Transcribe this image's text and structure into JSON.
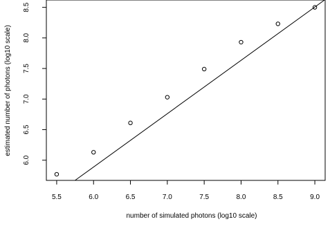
{
  "chart_data": {
    "type": "scatter",
    "title": "",
    "xlabel": "number of simulated photons (log10 scale)",
    "ylabel": "estimated number of photons (log10 scale)",
    "xlim": [
      5.36,
      9.14
    ],
    "ylim": [
      5.67,
      8.62
    ],
    "x_ticks": [
      "5.5",
      "6.0",
      "6.5",
      "7.0",
      "7.5",
      "8.0",
      "8.5",
      "9.0"
    ],
    "y_ticks": [
      "6.0",
      "6.5",
      "7.0",
      "7.5",
      "8.0",
      "8.5"
    ],
    "grid": false,
    "points": [
      {
        "x": 5.5,
        "y": 5.77
      },
      {
        "x": 6.0,
        "y": 6.13
      },
      {
        "x": 6.5,
        "y": 6.61
      },
      {
        "x": 7.0,
        "y": 7.03
      },
      {
        "x": 7.5,
        "y": 7.49
      },
      {
        "x": 8.0,
        "y": 7.93
      },
      {
        "x": 8.5,
        "y": 8.23
      },
      {
        "x": 9.0,
        "y": 8.5
      }
    ],
    "fit_line": {
      "intercept": 0.657,
      "slope": 0.872
    },
    "colors": {
      "marker": "#000000",
      "line": "#000000",
      "axes": "#000000"
    },
    "marker_style": "open-circle"
  }
}
